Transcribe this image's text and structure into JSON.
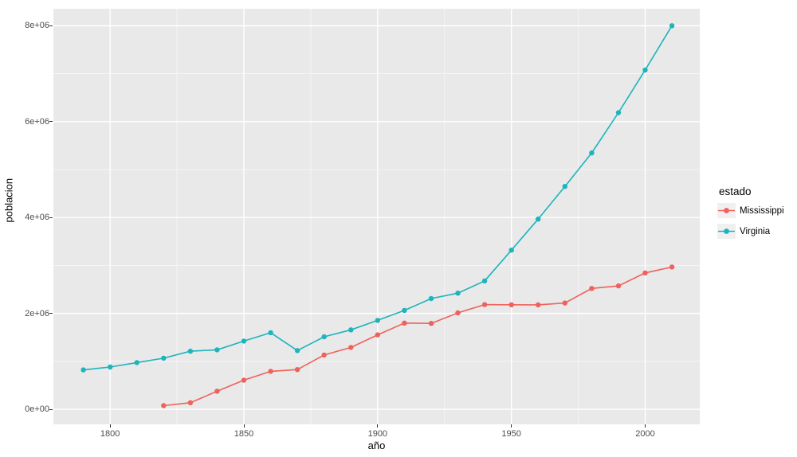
{
  "figure": {
    "background": "#ffffff",
    "panel_background": "#e9e9e9",
    "gridline_color": "#ffffff",
    "tick_mark_color": "#333333",
    "tick_label_color": "#4d4d4d"
  },
  "chart_data": {
    "type": "line",
    "title": "",
    "xlabel": "año",
    "ylabel": "poblacion",
    "legend_title": "estado",
    "legend_position": "right",
    "grid": "on",
    "xlim": [
      1778.8,
      2020.4
    ],
    "ylim": [
      -315000,
      8355000
    ],
    "x_ticks": [
      1800,
      1850,
      1900,
      1950,
      2000
    ],
    "x_tick_labels": [
      "1800",
      "1850",
      "1900",
      "1950",
      "2000"
    ],
    "x_minor_ticks": [
      1825,
      1875,
      1925,
      1975
    ],
    "y_ticks": [
      0,
      2000000,
      4000000,
      6000000,
      8000000
    ],
    "y_tick_labels": [
      "0e+00",
      "2e+06",
      "4e+06",
      "6e+06",
      "8e+06"
    ],
    "y_minor_ticks": [
      1000000,
      3000000,
      5000000,
      7000000
    ],
    "series": [
      {
        "name": "Mississippi",
        "color": "#ef615a",
        "x": [
          1820,
          1830,
          1840,
          1850,
          1860,
          1870,
          1880,
          1890,
          1900,
          1910,
          1920,
          1930,
          1940,
          1950,
          1960,
          1970,
          1980,
          1990,
          2000,
          2010
        ],
        "values": [
          75448,
          136621,
          375651,
          606526,
          791305,
          827922,
          1131597,
          1289600,
          1551270,
          1797114,
          1790618,
          2009821,
          2183796,
          2178914,
          2178141,
          2216912,
          2520638,
          2573216,
          2844658,
          2967297
        ]
      },
      {
        "name": "Virginia",
        "color": "#1db4bc",
        "x": [
          1790,
          1800,
          1810,
          1820,
          1830,
          1840,
          1850,
          1860,
          1870,
          1880,
          1890,
          1900,
          1910,
          1920,
          1930,
          1940,
          1950,
          1960,
          1970,
          1980,
          1990,
          2000,
          2010
        ],
        "values": [
          821287,
          880200,
          974600,
          1065366,
          1211405,
          1239797,
          1421661,
          1596318,
          1225163,
          1512565,
          1655980,
          1854184,
          2061612,
          2309187,
          2421851,
          2677773,
          3318680,
          3966949,
          4648494,
          5346818,
          6187358,
          7078515,
          8001024
        ]
      }
    ]
  }
}
